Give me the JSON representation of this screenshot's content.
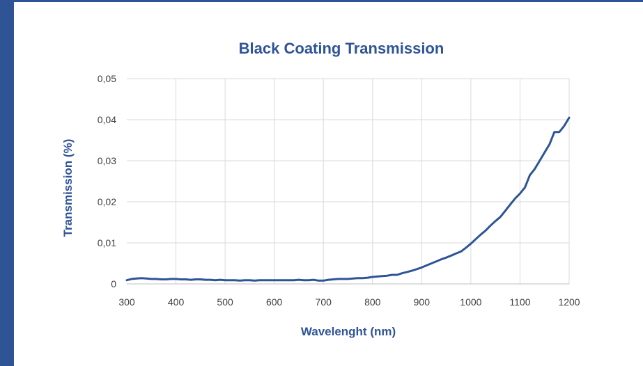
{
  "chart_data": {
    "type": "line",
    "title": "Black Coating Transmission",
    "xlabel": "Wavelenght (nm)",
    "ylabel": "Transmission (%)",
    "xlim": [
      300,
      1200
    ],
    "ylim": [
      0,
      0.05
    ],
    "x_ticks": [
      "300",
      "400",
      "500",
      "600",
      "700",
      "800",
      "900",
      "1000",
      "1100",
      "1200"
    ],
    "x_tick_values": [
      300,
      400,
      500,
      600,
      700,
      800,
      900,
      1000,
      1100,
      1200
    ],
    "y_ticks": [
      "0",
      "0,01",
      "0,02",
      "0,03",
      "0,04",
      "0,05"
    ],
    "y_tick_values": [
      0,
      0.01,
      0.02,
      0.03,
      0.04,
      0.05
    ],
    "grid": true,
    "legend": "none",
    "series": [
      {
        "color": "#2f5496",
        "x": [
          300,
          310,
          320,
          330,
          340,
          350,
          360,
          370,
          380,
          390,
          400,
          410,
          420,
          430,
          440,
          450,
          460,
          470,
          480,
          490,
          500,
          510,
          520,
          530,
          540,
          550,
          560,
          570,
          580,
          590,
          600,
          610,
          620,
          630,
          640,
          650,
          660,
          670,
          680,
          690,
          700,
          710,
          720,
          730,
          740,
          750,
          760,
          770,
          780,
          790,
          800,
          810,
          820,
          830,
          840,
          850,
          860,
          870,
          880,
          890,
          900,
          910,
          920,
          930,
          940,
          950,
          960,
          970,
          980,
          990,
          1000,
          1010,
          1020,
          1030,
          1040,
          1050,
          1060,
          1070,
          1080,
          1090,
          1100,
          1110,
          1120,
          1130,
          1140,
          1150,
          1160,
          1170,
          1180,
          1190,
          1200
        ],
        "y": [
          0.0009,
          0.0012,
          0.0013,
          0.0014,
          0.0013,
          0.0012,
          0.0012,
          0.0011,
          0.0011,
          0.0012,
          0.0012,
          0.0011,
          0.0011,
          0.001,
          0.0011,
          0.0011,
          0.001,
          0.001,
          0.0009,
          0.001,
          0.0009,
          0.0009,
          0.0009,
          0.0008,
          0.0009,
          0.0009,
          0.0008,
          0.0009,
          0.0009,
          0.0009,
          0.0009,
          0.0009,
          0.0009,
          0.0009,
          0.0009,
          0.001,
          0.0009,
          0.0009,
          0.001,
          0.0008,
          0.0008,
          0.001,
          0.0011,
          0.0012,
          0.0012,
          0.0012,
          0.0013,
          0.0014,
          0.0014,
          0.0015,
          0.0017,
          0.0018,
          0.0019,
          0.002,
          0.0022,
          0.0022,
          0.0026,
          0.0029,
          0.0032,
          0.0036,
          0.004,
          0.0045,
          0.005,
          0.0055,
          0.006,
          0.0064,
          0.0069,
          0.0074,
          0.0079,
          0.0088,
          0.0098,
          0.0109,
          0.012,
          0.013,
          0.0142,
          0.0153,
          0.0163,
          0.0178,
          0.0193,
          0.0208,
          0.022,
          0.0235,
          0.0265,
          0.028,
          0.03,
          0.032,
          0.034,
          0.037,
          0.037,
          0.0385,
          0.0405
        ]
      }
    ]
  }
}
